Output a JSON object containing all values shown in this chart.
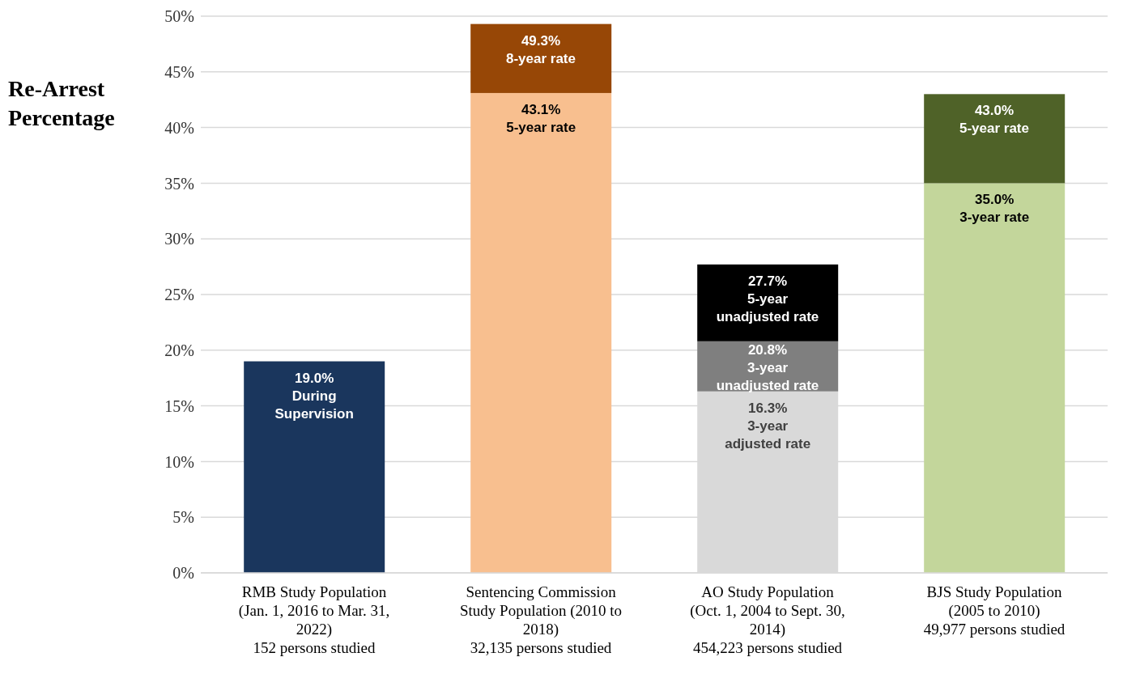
{
  "chart_data": {
    "type": "bar",
    "ylabel": "Re-Arrest Percentage",
    "categories": [
      "RMB Study Population\n(Jan. 1, 2016 to Mar. 31,\n2022)\n152 persons studied",
      "Sentencing Commission\nStudy Population (2010 to\n2018)\n32,135 persons studied",
      "AO Study Population\n(Oct. 1, 2004 to Sept. 30,\n2014)\n454,223 persons studied",
      "BJS Study Population\n(2005 to 2010)\n49,977 persons studied"
    ],
    "series": [
      {
        "values": [
          19.0,
          43.1,
          16.3,
          35.0
        ],
        "colors": [
          "#1a365d",
          "#f8bf8f",
          "#d9d9d9",
          "#c3d69b"
        ],
        "value_labels": [
          "19.0%\nDuring\nSupervision",
          "43.1%\n5-year rate",
          "16.3%\n3-year\nadjusted rate",
          "35.0%\n3-year rate"
        ]
      },
      {
        "values": [
          null,
          6.2,
          4.5,
          8.0
        ],
        "colors": [
          null,
          "#974706",
          "#7f7f7f",
          "#4f6228"
        ]
      },
      {
        "values": [
          null,
          null,
          6.9,
          null
        ],
        "colors": [
          null,
          null,
          "#000000",
          null
        ]
      }
    ],
    "annotations": [
      {
        "text": "49.3%\n8-year rate",
        "x": "Sentencing Commission\nStudy Population (2010 to\n2018)\n32,135 persons studied",
        "y": 49.3
      },
      {
        "text": "20.8%\n3-year\nunadjusted rate",
        "x": "AO Study Population\n(Oct. 1, 2004 to Sept. 30,\n2014)\n454,223 persons studied",
        "y": 20.8
      },
      {
        "text": "27.7%\n5-year\nunadjusted rate",
        "x": "AO Study Population\n(Oct. 1, 2004 to Sept. 30,\n2014)\n454,223 persons studied",
        "y": 27.7
      },
      {
        "text": "43.0%\n5-year rate",
        "x": "BJS Study Population\n(2005 to 2010)\n49,977 persons studied",
        "y": 43.0
      }
    ],
    "stacked": true,
    "ylim": [
      0,
      50
    ],
    "yticks": [
      {
        "value": 0,
        "label": "0%"
      },
      {
        "value": 5,
        "label": "5%"
      },
      {
        "value": 10,
        "label": "10%"
      },
      {
        "value": 15,
        "label": "15%"
      },
      {
        "value": 20,
        "label": "20%"
      },
      {
        "value": 25,
        "label": "25%"
      },
      {
        "value": 30,
        "label": "30%"
      },
      {
        "value": 35,
        "label": "35%"
      },
      {
        "value": 40,
        "label": "40%"
      },
      {
        "value": 45,
        "label": "45%"
      },
      {
        "value": 50,
        "label": "50%"
      }
    ],
    "grid": "y",
    "legend": false
  }
}
